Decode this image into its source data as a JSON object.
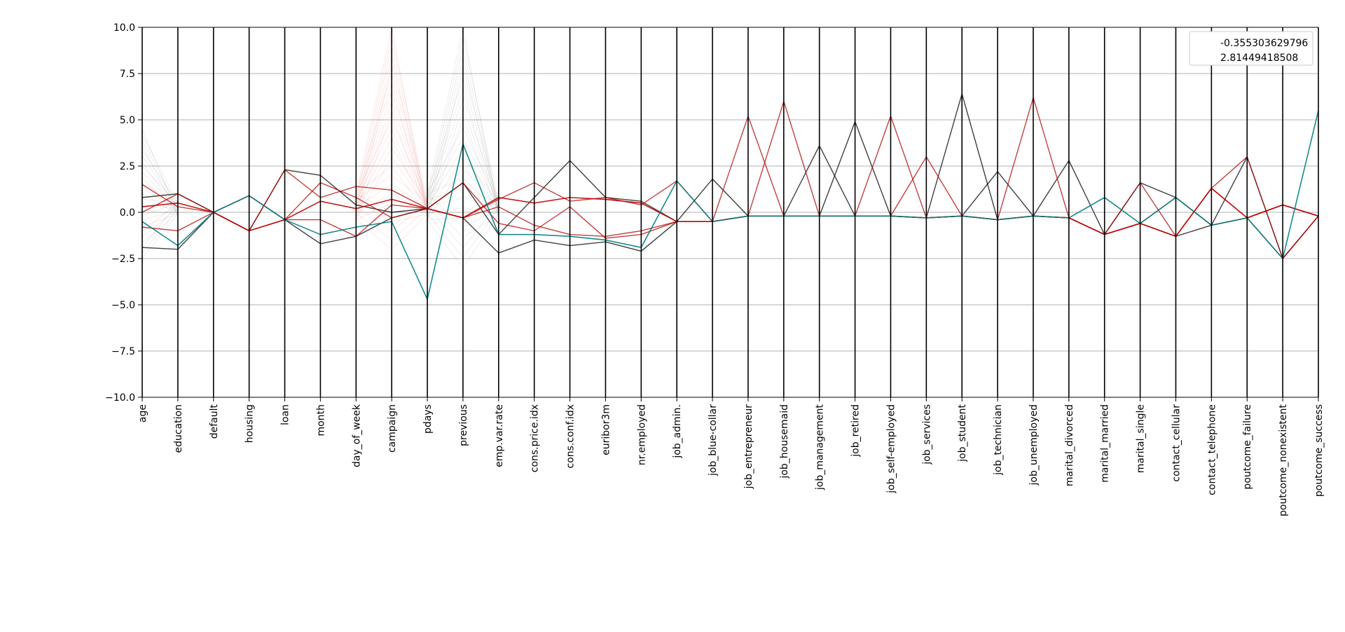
{
  "chart_data": {
    "type": "parallel-coordinates",
    "xlabel": "",
    "ylabel": "",
    "ylim": [
      -10.0,
      10.0
    ],
    "yticks": [
      -10.0,
      -7.5,
      -5.0,
      -2.5,
      0.0,
      2.5,
      5.0,
      7.5,
      10.0
    ],
    "ytick_labels": [
      "−10.0",
      "−7.5",
      "−5.0",
      "−2.5",
      "0.0",
      "2.5",
      "5.0",
      "7.5",
      "10.0"
    ],
    "grid": true,
    "legend_position": "top-right",
    "categories": [
      "age",
      "education",
      "default",
      "housing",
      "loan",
      "month",
      "day_of_week",
      "campaign",
      "pdays",
      "previous",
      "emp.var.rate",
      "cons.price.idx",
      "cons.conf.idx",
      "euribor3m",
      "nr.employed",
      "job_admin.",
      "job_blue-collar",
      "job_entrepreneur",
      "job_housemaid",
      "job_management",
      "job_retired",
      "job_self-employed",
      "job_services",
      "job_student",
      "job_technician",
      "job_unemployed",
      "marital_divorced",
      "marital_married",
      "marital_single",
      "contact_cellular",
      "contact_telephone",
      "poutcome_failure",
      "poutcome_nonexistent",
      "poutcome_success"
    ],
    "series": [
      {
        "name": "-0.355303629796",
        "color": "#c00000",
        "values": [
          0.3,
          0.5,
          0.0,
          -1.0,
          -0.4,
          0.6,
          0.2,
          0.7,
          0.2,
          -0.3,
          0.8,
          0.5,
          0.8,
          0.7,
          0.5,
          -0.5,
          -0.5,
          -0.2,
          -0.2,
          -0.2,
          -0.2,
          -0.2,
          -0.3,
          -0.2,
          -0.4,
          -0.2,
          -0.3,
          -1.2,
          -0.6,
          -1.3,
          1.3,
          -0.3,
          0.4,
          -0.2
        ]
      },
      {
        "name": "2.81449418508",
        "color": "#008080",
        "values": [
          -0.5,
          -1.8,
          0.0,
          0.9,
          -0.4,
          -1.2,
          -0.8,
          -0.5,
          -4.7,
          3.7,
          -1.2,
          -1.2,
          -1.3,
          -1.5,
          -1.9,
          1.7,
          -0.5,
          -0.2,
          -0.2,
          -0.2,
          -0.2,
          -0.2,
          -0.3,
          -0.2,
          -0.4,
          -0.2,
          -0.3,
          0.8,
          -0.6,
          0.8,
          -0.7,
          -0.3,
          -2.5,
          5.5
        ]
      }
    ],
    "highlight_paths": [
      {
        "color": "#000000",
        "values": [
          0.8,
          1.0,
          0.0,
          0.9,
          -0.4,
          -1.7,
          -1.3,
          -0.3,
          0.2,
          -0.3,
          -2.2,
          -1.5,
          -1.8,
          -1.6,
          -2.1,
          -0.5,
          1.8,
          -0.2,
          -0.2,
          3.6,
          -0.2,
          -0.2,
          -0.3,
          6.4,
          -0.4,
          -0.2,
          2.8,
          -1.2,
          1.6,
          0.8,
          -0.7,
          3.0,
          -2.5,
          -0.2
        ]
      },
      {
        "color": "#000000",
        "values": [
          -1.9,
          -2.0,
          0.0,
          -1.0,
          2.3,
          2.0,
          0.4,
          0.0,
          0.2,
          1.6,
          -1.2,
          0.8,
          2.8,
          0.8,
          0.6,
          -0.5,
          -0.5,
          -0.2,
          -0.2,
          -0.2,
          4.9,
          -0.2,
          -0.3,
          -0.2,
          2.2,
          -0.2,
          -0.3,
          -1.2,
          -0.6,
          -1.3,
          -0.7,
          -0.3,
          0.4,
          -0.2
        ]
      },
      {
        "color": "#b00000",
        "values": [
          1.5,
          0.3,
          0.0,
          -1.0,
          2.3,
          0.8,
          1.4,
          1.2,
          0.2,
          -0.3,
          0.7,
          1.6,
          0.6,
          0.8,
          0.4,
          1.7,
          -0.5,
          5.2,
          -0.2,
          -0.2,
          -0.2,
          5.2,
          -0.3,
          -0.2,
          -0.4,
          6.2,
          -0.3,
          -1.2,
          1.6,
          -1.3,
          1.3,
          -0.3,
          0.4,
          -0.2
        ]
      },
      {
        "color": "#b00000",
        "values": [
          0.0,
          1.0,
          0.0,
          0.9,
          -0.4,
          -0.4,
          -1.3,
          0.4,
          0.2,
          -0.3,
          0.3,
          -0.7,
          -1.2,
          -1.3,
          -1.0,
          -0.5,
          -0.5,
          -0.2,
          6.0,
          -0.2,
          -0.2,
          -0.2,
          3.0,
          -0.2,
          -0.4,
          -0.2,
          -0.3,
          -1.2,
          -0.6,
          0.8,
          -0.7,
          -0.3,
          -2.5,
          -0.2
        ]
      },
      {
        "color": "#b00000",
        "values": [
          -0.8,
          -1.0,
          0.0,
          -1.0,
          -0.4,
          1.6,
          0.8,
          -0.3,
          0.2,
          1.6,
          -0.6,
          -1.0,
          0.3,
          -1.4,
          -1.2,
          -0.5,
          -0.5,
          -0.2,
          -0.2,
          -0.2,
          -0.2,
          -0.2,
          -0.3,
          -0.2,
          -0.4,
          -0.2,
          -0.3,
          -1.2,
          -0.6,
          -1.3,
          1.3,
          3.0,
          -2.5,
          -0.2
        ]
      }
    ],
    "faint_bundles": [
      {
        "color": "#d00000",
        "axis": "campaign",
        "ymin": -2.0,
        "ymax": 10.0
      },
      {
        "color": "#333333",
        "axis": "previous",
        "ymin": -3.0,
        "ymax": 10.0
      },
      {
        "color": "#333333",
        "axis": "age",
        "ymin": -2.5,
        "ymax": 4.5
      }
    ]
  }
}
